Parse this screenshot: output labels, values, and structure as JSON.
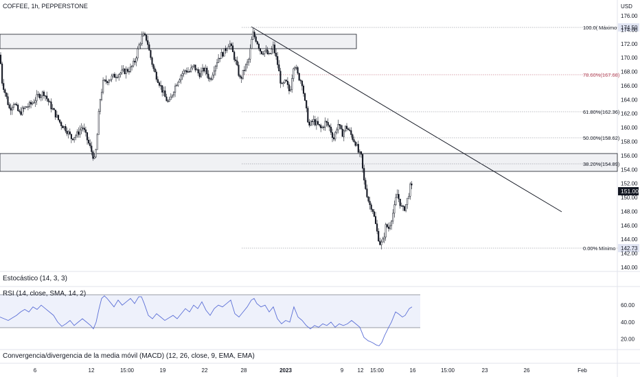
{
  "header": {
    "title": "COFFEE, 1h, PEPPERSTONE"
  },
  "chart_data": [
    {
      "type": "candlestick",
      "title": "COFFEE, 1h, PEPPERSTONE",
      "currency_label": "USD",
      "y_ticks": [
        "176.00",
        "174.00",
        "172.00",
        "170.00",
        "168.00",
        "166.00",
        "164.00",
        "162.00",
        "160.00",
        "158.00",
        "156.00",
        "154.00",
        "152.00",
        "150.00",
        "148.00",
        "146.00",
        "144.00",
        "142.00",
        "140.00"
      ],
      "x_ticks": [
        "6",
        "12",
        "15:00",
        "19",
        "22",
        "28",
        "2023",
        "9",
        "12",
        "15:00",
        "16",
        "15:00",
        "23",
        "26",
        "Feb"
      ],
      "ylim": [
        139.5,
        177.2
      ],
      "last_price": "151.00",
      "price_path": [
        [
          0,
          170.4
        ],
        [
          3,
          166.6
        ],
        [
          8,
          164.8
        ],
        [
          14,
          162.6
        ],
        [
          20,
          163.6
        ],
        [
          28,
          162.0
        ],
        [
          36,
          162.8
        ],
        [
          46,
          163.4
        ],
        [
          56,
          164.6
        ],
        [
          64,
          165.0
        ],
        [
          72,
          163.4
        ],
        [
          80,
          162.0
        ],
        [
          88,
          160.6
        ],
        [
          96,
          159.8
        ],
        [
          104,
          158.5
        ],
        [
          112,
          159.0
        ],
        [
          120,
          160.2
        ],
        [
          128,
          158.0
        ],
        [
          134,
          156.4
        ],
        [
          138,
          155.2
        ],
        [
          141,
          158.0
        ],
        [
          145,
          163.6
        ],
        [
          150,
          166.4
        ],
        [
          160,
          167.0
        ],
        [
          170,
          167.6
        ],
        [
          180,
          168.0
        ],
        [
          190,
          168.4
        ],
        [
          196,
          169.4
        ],
        [
          202,
          171.6
        ],
        [
          208,
          173.2
        ],
        [
          214,
          172.6
        ],
        [
          218,
          170.6
        ],
        [
          224,
          168.2
        ],
        [
          232,
          166.4
        ],
        [
          240,
          164.4
        ],
        [
          246,
          163.4
        ],
        [
          252,
          165.2
        ],
        [
          258,
          166.6
        ],
        [
          264,
          167.6
        ],
        [
          270,
          168.2
        ],
        [
          276,
          168.0
        ],
        [
          282,
          168.8
        ],
        [
          290,
          167.6
        ],
        [
          298,
          168.4
        ],
        [
          306,
          166.8
        ],
        [
          312,
          168.6
        ],
        [
          318,
          170.0
        ],
        [
          326,
          170.8
        ],
        [
          334,
          172.2
        ],
        [
          342,
          169.8
        ],
        [
          350,
          166.8
        ],
        [
          356,
          168.4
        ],
        [
          362,
          169.6
        ],
        [
          368,
          173.5
        ],
        [
          374,
          172.4
        ],
        [
          380,
          170.8
        ],
        [
          386,
          171.0
        ],
        [
          392,
          170.2
        ],
        [
          398,
          171.6
        ],
        [
          404,
          169.2
        ],
        [
          410,
          165.8
        ],
        [
          416,
          166.6
        ],
        [
          422,
          165.0
        ],
        [
          428,
          169.4
        ],
        [
          434,
          167.4
        ],
        [
          440,
          166.4
        ],
        [
          444,
          163.6
        ],
        [
          450,
          160.2
        ],
        [
          456,
          161.0
        ],
        [
          462,
          160.4
        ],
        [
          468,
          159.8
        ],
        [
          474,
          160.8
        ],
        [
          480,
          160.0
        ],
        [
          486,
          158.4
        ],
        [
          492,
          160.6
        ],
        [
          498,
          159.0
        ],
        [
          504,
          160.2
        ],
        [
          510,
          159.2
        ],
        [
          514,
          158.4
        ],
        [
          518,
          157.8
        ],
        [
          522,
          156.4
        ],
        [
          526,
          155.8
        ],
        [
          530,
          152.4
        ],
        [
          534,
          150.6
        ],
        [
          538,
          149.0
        ],
        [
          542,
          148.6
        ],
        [
          546,
          146.6
        ],
        [
          550,
          144.6
        ],
        [
          554,
          143.2
        ],
        [
          558,
          143.8
        ],
        [
          562,
          146.0
        ],
        [
          566,
          145.6
        ],
        [
          570,
          147.0
        ],
        [
          574,
          148.4
        ],
        [
          578,
          150.6
        ],
        [
          582,
          149.4
        ],
        [
          586,
          148.2
        ],
        [
          590,
          148.6
        ],
        [
          594,
          150.0
        ],
        [
          598,
          151.8
        ],
        [
          601,
          151.0
        ]
      ],
      "annotations": {
        "fib_levels": [
          {
            "label": "100.0(",
            "extra": "Máximo",
            "price": "174.50"
          },
          {
            "label": "78.60%(167.68)"
          },
          {
            "label": "61.80%(162.36)"
          },
          {
            "label": "50.00%(158.62)"
          },
          {
            "label": "38.20%(154.89)"
          },
          {
            "label": "0.00%(",
            "extra": "Mínimo",
            "price": "142.73"
          }
        ]
      }
    },
    {
      "type": "line",
      "title": "Estocástico (14, 3, 3)"
    },
    {
      "type": "line",
      "title": "RSI (14, close, SMA, 14, 2)",
      "y_ticks": [
        "60.00",
        "40.00",
        "20.00"
      ],
      "ylim": [
        10,
        78
      ],
      "bands": [
        70,
        30
      ],
      "series": [
        {
          "color": "#5b6fd6",
          "values": [
            [
              0,
              46
            ],
            [
              6,
              44
            ],
            [
              12,
              42
            ],
            [
              18,
              45
            ],
            [
              24,
              48
            ],
            [
              30,
              52
            ],
            [
              36,
              55
            ],
            [
              42,
              52
            ],
            [
              48,
              58
            ],
            [
              54,
              55
            ],
            [
              60,
              60
            ],
            [
              66,
              56
            ],
            [
              72,
              52
            ],
            [
              78,
              48
            ],
            [
              84,
              40
            ],
            [
              90,
              35
            ],
            [
              96,
              38
            ],
            [
              102,
              42
            ],
            [
              108,
              36
            ],
            [
              114,
              40
            ],
            [
              120,
              44
            ],
            [
              126,
              40
            ],
            [
              132,
              36
            ],
            [
              136,
              32
            ],
            [
              140,
              40
            ],
            [
              144,
              55
            ],
            [
              148,
              68
            ],
            [
              152,
              71
            ],
            [
              156,
              68
            ],
            [
              160,
              64
            ],
            [
              166,
              58
            ],
            [
              172,
              66
            ],
            [
              178,
              60
            ],
            [
              184,
              64
            ],
            [
              190,
              68
            ],
            [
              196,
              62
            ],
            [
              202,
              70
            ],
            [
              206,
              70
            ],
            [
              210,
              62
            ],
            [
              216,
              48
            ],
            [
              222,
              44
            ],
            [
              228,
              50
            ],
            [
              234,
              46
            ],
            [
              240,
              42
            ],
            [
              246,
              45
            ],
            [
              252,
              48
            ],
            [
              258,
              44
            ],
            [
              264,
              50
            ],
            [
              270,
              56
            ],
            [
              276,
              52
            ],
            [
              282,
              60
            ],
            [
              288,
              56
            ],
            [
              294,
              64
            ],
            [
              300,
              54
            ],
            [
              306,
              48
            ],
            [
              312,
              56
            ],
            [
              318,
              60
            ],
            [
              324,
              58
            ],
            [
              330,
              62
            ],
            [
              336,
              66
            ],
            [
              342,
              50
            ],
            [
              348,
              46
            ],
            [
              354,
              52
            ],
            [
              360,
              58
            ],
            [
              366,
              66
            ],
            [
              370,
              68
            ],
            [
              374,
              62
            ],
            [
              380,
              58
            ],
            [
              386,
              60
            ],
            [
              392,
              52
            ],
            [
              398,
              58
            ],
            [
              404,
              44
            ],
            [
              410,
              38
            ],
            [
              416,
              42
            ],
            [
              422,
              40
            ],
            [
              428,
              58
            ],
            [
              434,
              46
            ],
            [
              440,
              42
            ],
            [
              446,
              36
            ],
            [
              452,
              32
            ],
            [
              458,
              36
            ],
            [
              464,
              34
            ],
            [
              470,
              38
            ],
            [
              476,
              36
            ],
            [
              482,
              40
            ],
            [
              488,
              34
            ],
            [
              494,
              38
            ],
            [
              500,
              36
            ],
            [
              506,
              38
            ],
            [
              512,
              42
            ],
            [
              518,
              38
            ],
            [
              524,
              34
            ],
            [
              530,
              22
            ],
            [
              536,
              18
            ],
            [
              542,
              16
            ],
            [
              548,
              13
            ],
            [
              552,
              12
            ],
            [
              556,
              16
            ],
            [
              560,
              24
            ],
            [
              566,
              34
            ],
            [
              570,
              40
            ],
            [
              576,
              52
            ],
            [
              580,
              50
            ],
            [
              586,
              46
            ],
            [
              590,
              48
            ],
            [
              596,
              56
            ],
            [
              600,
              58
            ]
          ]
        }
      ]
    },
    {
      "type": "line",
      "title": "Convergencia/divergencia de la media móvil (MACD) (12, 26, close, 9, EMA, EMA)"
    }
  ]
}
